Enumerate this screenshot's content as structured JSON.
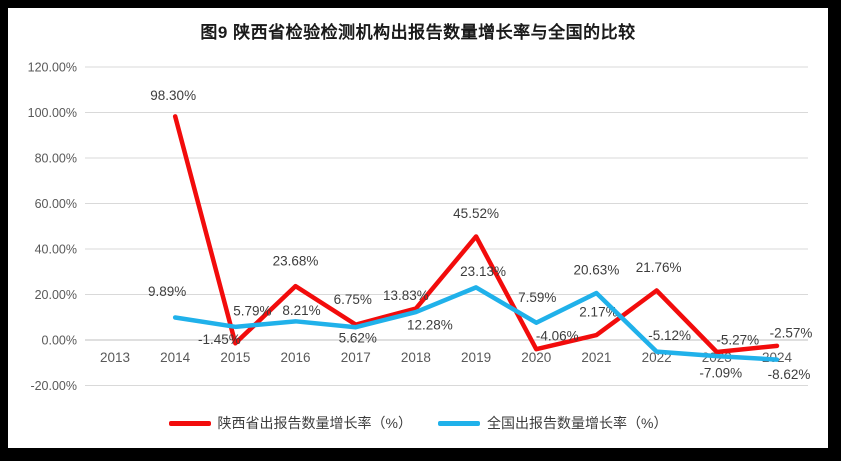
{
  "title": "图9  陕西省检验检测机构出报告数量增长率与全国的比较",
  "chart_data": {
    "type": "line",
    "categories": [
      "2013",
      "2014",
      "2015",
      "2016",
      "2017",
      "2018",
      "2019",
      "2020",
      "2021",
      "2022",
      "2023",
      "2024"
    ],
    "series": [
      {
        "name": "陕西省出报告数量增长率（%）",
        "color": "#f20c0c",
        "values": [
          null,
          98.3,
          -1.45,
          23.68,
          6.75,
          13.83,
          45.52,
          -4.06,
          2.17,
          21.76,
          -5.27,
          -2.57
        ],
        "label_offsets": [
          null,
          [
            -2,
            -21
          ],
          [
            -16,
            -4
          ],
          [
            0,
            -25
          ],
          [
            -3,
            -25
          ],
          [
            -10,
            -13
          ],
          [
            0,
            -23
          ],
          [
            21,
            -13
          ],
          [
            2,
            -23
          ],
          [
            2,
            -23
          ],
          [
            21,
            -12
          ],
          [
            14,
            -13
          ]
        ]
      },
      {
        "name": "全国出报告数量增长率（%）",
        "color": "#20b1ea",
        "values": [
          null,
          9.89,
          5.79,
          8.21,
          5.62,
          12.28,
          23.13,
          7.59,
          20.63,
          -5.12,
          -7.09,
          -8.62
        ],
        "label_offsets": [
          null,
          [
            -8,
            -26
          ],
          [
            17,
            -16
          ],
          [
            6,
            -11
          ],
          [
            2,
            11
          ],
          [
            14,
            13
          ],
          [
            7,
            -16
          ],
          [
            1,
            -25
          ],
          [
            0,
            -23
          ],
          [
            13,
            -16
          ],
          [
            4,
            17
          ],
          [
            12,
            15
          ]
        ]
      }
    ],
    "y_axis": {
      "ticks": [
        "120.00%",
        "100.00%",
        "80.00%",
        "60.00%",
        "40.00%",
        "20.00%",
        "0.00%",
        "-20.00%"
      ],
      "min": -20,
      "max": 120,
      "step": 20
    },
    "xlabel": "",
    "ylabel": "",
    "grid": true,
    "data_labels": true,
    "legend_position": "bottom"
  },
  "colors": {
    "grid": "#d9d9d9",
    "zero_axis": "#bfbfbf",
    "axis_text": "#595959",
    "data_label_text": "#3d3d3d",
    "frame_border": "#000000",
    "background": "#ffffff"
  }
}
